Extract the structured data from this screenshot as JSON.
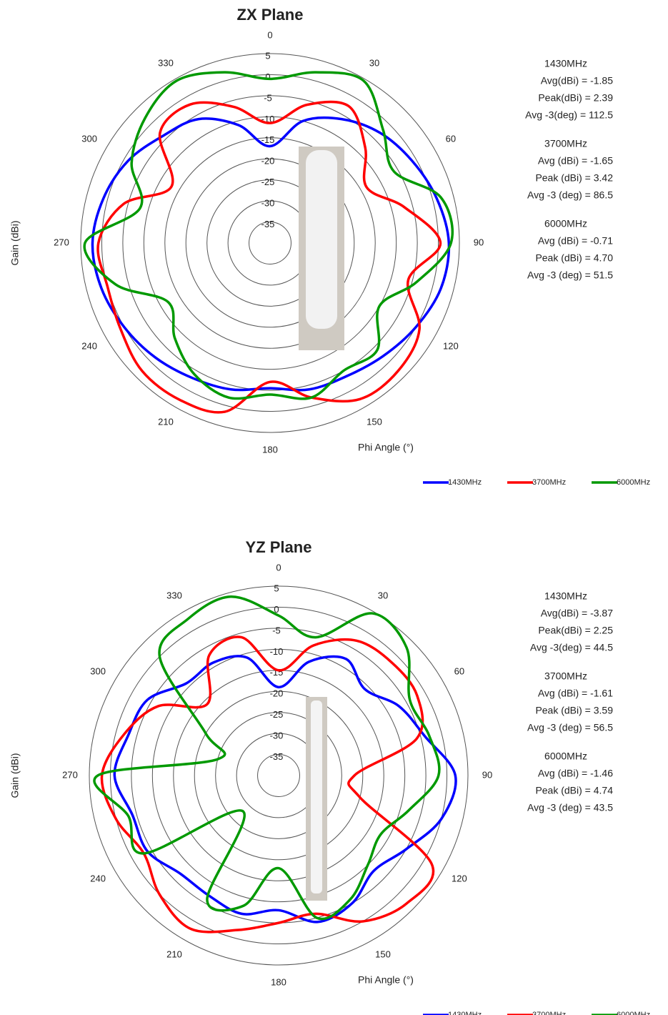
{
  "chart_data": [
    {
      "type": "polar",
      "title": "ZX Plane",
      "x_label": "Phi Angle (°)",
      "y_label": "Gain (dBi)",
      "angles": [
        0,
        30,
        60,
        90,
        120,
        150,
        180,
        210,
        240,
        270,
        300,
        330
      ],
      "rlim": [
        -40,
        5
      ],
      "rticks": [
        -35,
        -30,
        -25,
        -20,
        -15,
        -10,
        -5,
        0,
        5
      ],
      "x": [
        0,
        15,
        30,
        45,
        60,
        75,
        90,
        105,
        120,
        135,
        150,
        165,
        180,
        195,
        210,
        225,
        240,
        255,
        270,
        285,
        300,
        315,
        330,
        345
      ],
      "series": [
        {
          "name": "1430MHz",
          "color": "#0000ff",
          "values": [
            -17,
            -10,
            -6,
            -3,
            -1,
            1,
            2.5,
            2,
            0,
            -2,
            -3.5,
            -4,
            -5.5,
            -4,
            -3,
            -1.5,
            0,
            1.5,
            2.2,
            1,
            -1,
            -4,
            -6,
            -11
          ]
        },
        {
          "name": "3700MHz",
          "color": "#ff0000",
          "values": [
            -11.5,
            -6,
            -2.5,
            -8,
            -13.5,
            -7,
            0.5,
            -6,
            1,
            3,
            2.8,
            -2,
            -7,
            1.5,
            3,
            3,
            1,
            0,
            0.8,
            -4,
            -13,
            -3,
            -2,
            -6.5
          ]
        },
        {
          "name": "6000MHz",
          "color": "#009900",
          "values": [
            -1,
            2,
            4.5,
            -2,
            -6,
            2,
            3,
            -4,
            -10,
            -4,
            -5,
            -2,
            -4,
            -2,
            -4,
            -8,
            -12,
            -2,
            4,
            -8,
            -2,
            2,
            4.5,
            2
          ]
        }
      ],
      "annotations": [
        {
          "title": "1430MHz",
          "lines": [
            "Avg(dBi) = -1.85",
            "Peak(dBi) = 2.39",
            "Avg -3(deg) = 112.5"
          ]
        },
        {
          "title": "3700MHz",
          "lines": [
            "Avg (dBi) =  -1.65",
            "Peak (dBi) =  3.42",
            "Avg -3 (deg) =  86.5"
          ]
        },
        {
          "title": "6000MHz",
          "lines": [
            "Avg (dBi) =  -0.71",
            "Peak (dBi) =  4.70",
            "Avg -3 (deg) =  51.5"
          ]
        }
      ]
    },
    {
      "type": "polar",
      "title": "YZ Plane",
      "x_label": "Phi Angle (°)",
      "y_label": "Gain (dBi)",
      "angles": [
        0,
        30,
        60,
        90,
        120,
        150,
        180,
        210,
        240,
        270,
        300,
        330
      ],
      "rlim": [
        -40,
        5
      ],
      "rticks": [
        -35,
        -30,
        -25,
        -20,
        -15,
        -10,
        -5,
        0,
        5
      ],
      "x": [
        0,
        15,
        30,
        45,
        60,
        75,
        90,
        105,
        120,
        135,
        150,
        165,
        180,
        195,
        210,
        225,
        240,
        255,
        270,
        285,
        300,
        315,
        330,
        345
      ],
      "series": [
        {
          "name": "1430MHz",
          "color": "#0000ff",
          "values": [
            -19,
            -12,
            -8,
            -11,
            -7,
            -4,
            2,
            0,
            -5,
            -8,
            -5,
            -4,
            -8,
            -6,
            -7,
            -7,
            -4,
            -4,
            -1,
            -3,
            -4,
            -9,
            -9,
            -11
          ]
        },
        {
          "name": "3700MHz",
          "color": "#ff0000",
          "values": [
            -15,
            -8,
            -3,
            -2,
            -2,
            -6,
            -22,
            -20,
            2,
            3,
            0,
            -6,
            -5,
            -2,
            2,
            0,
            -3,
            0,
            2,
            -2,
            -7,
            -16,
            -7,
            -6
          ]
        },
        {
          "name": "6000MHz",
          "color": "#009900",
          "values": [
            -2,
            -6,
            4.5,
            3,
            -4,
            -3,
            -2,
            -8,
            -12,
            -10,
            -6,
            -5,
            -18,
            -8,
            -6,
            -28,
            -3,
            -3,
            3,
            -25,
            -20,
            0,
            3,
            4
          ]
        }
      ],
      "annotations": [
        {
          "title": "1430MHz",
          "lines": [
            "Avg(dBi) = -3.87",
            "Peak(dBi) = 2.25",
            "Avg -3(deg) = 44.5"
          ]
        },
        {
          "title": "3700MHz",
          "lines": [
            "Avg (dBi) =  -1.61",
            "Peak (dBi) =  3.59",
            "Avg -3 (deg) =  56.5"
          ]
        },
        {
          "title": "6000MHz",
          "lines": [
            "Avg (dBi) =  -1.46",
            "Peak (dBi) =  4.74",
            "Avg -3 (deg) =  43.5"
          ]
        }
      ]
    }
  ]
}
